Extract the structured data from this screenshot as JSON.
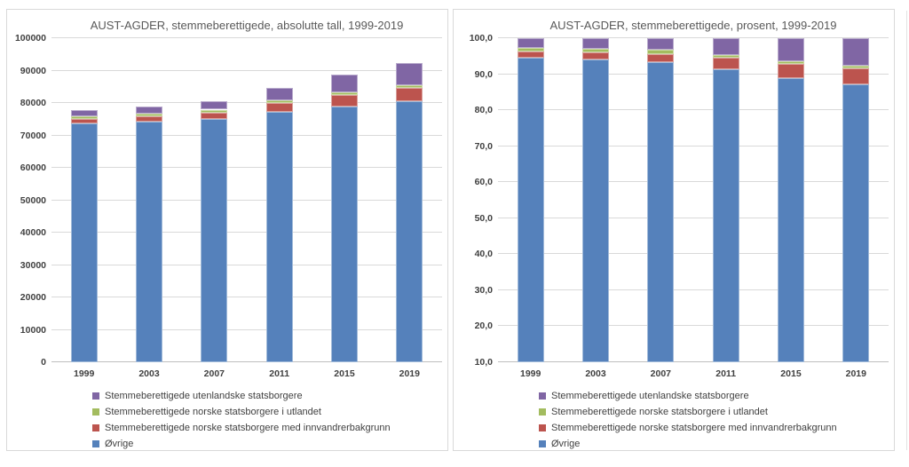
{
  "colors": {
    "ovrige_blue": "#5581BB",
    "innvandrer_red": "#BC544E",
    "utlandet_green": "#A3BC5F",
    "utenlandske_purple": "#8066A4",
    "gridline": "#D9D9D9",
    "axis_line": "#BFBFBF",
    "title_text": "#595959",
    "axis_text": "#404040",
    "panel_border": "#D9D9D9"
  },
  "legend": {
    "items": [
      {
        "label": "Stemmeberettigede utenlandske statsborgere",
        "color": "#8066A4"
      },
      {
        "label": "Stemmeberettigede norske statsborgere i utlandet",
        "color": "#A3BC5F"
      },
      {
        "label": "Stemmeberettigede norske statsborgere med innvandrerbakgrunn",
        "color": "#BC544E"
      },
      {
        "label": "Øvrige",
        "color": "#5581BB"
      }
    ]
  },
  "chart_data": [
    {
      "type": "bar",
      "stacked": true,
      "title": "AUST-AGDER, stemmeberettigede, absolutte tall, 1999-2019",
      "categories": [
        "1999",
        "2003",
        "2007",
        "2011",
        "2015",
        "2019"
      ],
      "series": [
        {
          "name": "Øvrige",
          "color": "#5581BB",
          "values": [
            73750,
            74350,
            75200,
            77300,
            78950,
            80550
          ]
        },
        {
          "name": "Stemmeberettigede norske statsborgere med innvandrerbakgrunn",
          "color": "#BC544E",
          "values": [
            1200,
            1500,
            1850,
            2700,
            3550,
            4050
          ]
        },
        {
          "name": "Stemmeberettigede norske statsborgere i utlandet",
          "color": "#A3BC5F",
          "values": [
            850,
            850,
            900,
            800,
            700,
            800
          ]
        },
        {
          "name": "Stemmeberettigede utenlandske statsborgere",
          "color": "#8066A4",
          "values": [
            2100,
            2300,
            2650,
            3900,
            5700,
            7000
          ]
        }
      ],
      "totals": [
        77900,
        79000,
        80600,
        84700,
        88900,
        92400
      ],
      "ylim": [
        0,
        100000
      ],
      "yticks": [
        "100000",
        "90000",
        "80000",
        "70000",
        "60000",
        "50000",
        "40000",
        "30000",
        "20000",
        "10000",
        "0"
      ],
      "grid": true,
      "legend_position": "bottom-left"
    },
    {
      "type": "bar",
      "stacked": true,
      "title": "AUST-AGDER, stemmeberettigede, prosent, 1999-2019",
      "categories": [
        "1999",
        "2003",
        "2007",
        "2011",
        "2015",
        "2019"
      ],
      "series": [
        {
          "name": "Øvrige",
          "color": "#5581BB",
          "values": [
            94.7,
            94.1,
            93.3,
            91.3,
            88.8,
            87.2
          ]
        },
        {
          "name": "Stemmeberettigede norske statsborgere med innvandrerbakgrunn",
          "color": "#BC544E",
          "values": [
            1.5,
            1.9,
            2.3,
            3.2,
            4.0,
            4.3
          ]
        },
        {
          "name": "Stemmeberettigede norske statsborgere i utlandet",
          "color": "#A3BC5F",
          "values": [
            1.1,
            1.1,
            1.1,
            0.9,
            0.8,
            0.9
          ]
        },
        {
          "name": "Stemmeberettigede utenlandske statsborgere",
          "color": "#8066A4",
          "values": [
            2.7,
            2.9,
            3.3,
            4.6,
            6.4,
            7.6
          ]
        }
      ],
      "ylim": [
        10,
        100
      ],
      "yticks": [
        "100,0",
        "90,0",
        "80,0",
        "70,0",
        "60,0",
        "50,0",
        "40,0",
        "30,0",
        "20,0",
        "10,0"
      ],
      "grid": true,
      "legend_position": "bottom-left"
    }
  ]
}
